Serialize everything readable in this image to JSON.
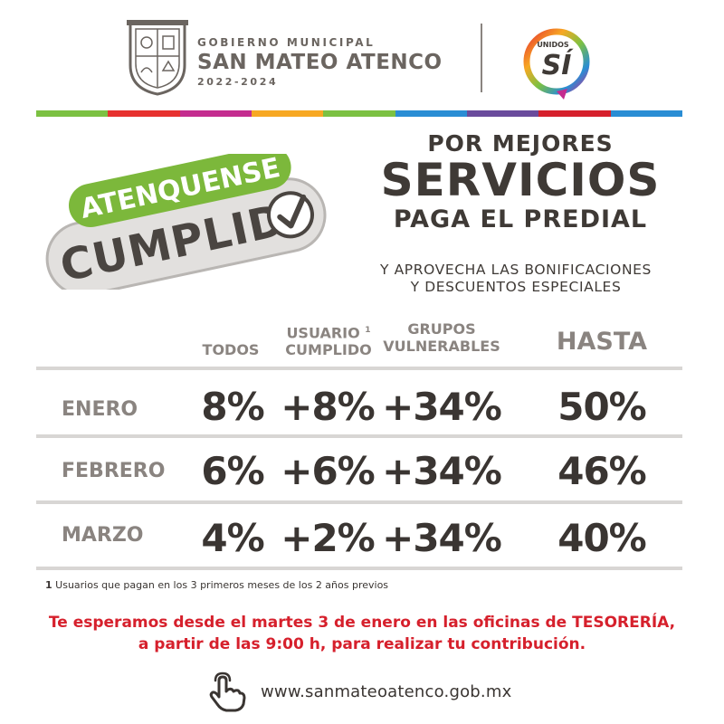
{
  "header": {
    "gov_line1": "GOBIERNO MUNICIPAL",
    "gov_line2": "SAN MATEO ATENCO",
    "gov_line3": "2022-2024",
    "logo_top": "UNIDOS",
    "logo_main": "SÍ",
    "color_bar": [
      "#7cc142",
      "#e7312f",
      "#c42c8f",
      "#f7a823",
      "#7cc142",
      "#2a8dd4",
      "#6a4b9c",
      "#d6202c",
      "#2a8dd4"
    ]
  },
  "badge": {
    "top": "ATENQUENSE",
    "main": "CUMPLID",
    "green": "#7cb83b"
  },
  "headline": {
    "line1": "POR MEJORES",
    "line2": "SERVICIOS",
    "line3": "PAGA EL PREDIAL",
    "sub1": "Y APROVECHA LAS BONIFICACIONES",
    "sub2": "Y DESCUENTOS ESPECIALES"
  },
  "table": {
    "headers": {
      "todos": "TODOS",
      "usuario_1": "USUARIO",
      "usuario_sup": "1",
      "usuario_2": "CUMPLIDO",
      "grupos_1": "GRUPOS",
      "grupos_2": "VULNERABLES",
      "hasta": "HASTA"
    },
    "rows": [
      {
        "month": "ENERO",
        "todos": "8%",
        "usuario": "+8%",
        "grupos": "+34%",
        "hasta": "50%"
      },
      {
        "month": "FEBRERO",
        "todos": "6%",
        "usuario": "+6%",
        "grupos": "+34%",
        "hasta": "46%"
      },
      {
        "month": "MARZO",
        "todos": "4%",
        "usuario": "+2%",
        "grupos": "+34%",
        "hasta": "40%"
      }
    ]
  },
  "footnote": {
    "num": "1",
    "text": "Usuarios que pagan en los 3 primeros meses de los 2 años previos"
  },
  "invite": {
    "line1": "Te esperamos desde el martes 3 de enero en las oficinas de TESORERÍA,",
    "line2": "a partir de las 9:00 h, para realizar tu contribución."
  },
  "website": {
    "url": "www.sanmateoatenco.gob.mx",
    "icon": "hand-pointer-icon"
  },
  "colors": {
    "text_dark": "#3f3a36",
    "text_grey": "#8a8480",
    "accent_red": "#d6202c",
    "accent_green": "#7cb83b"
  }
}
